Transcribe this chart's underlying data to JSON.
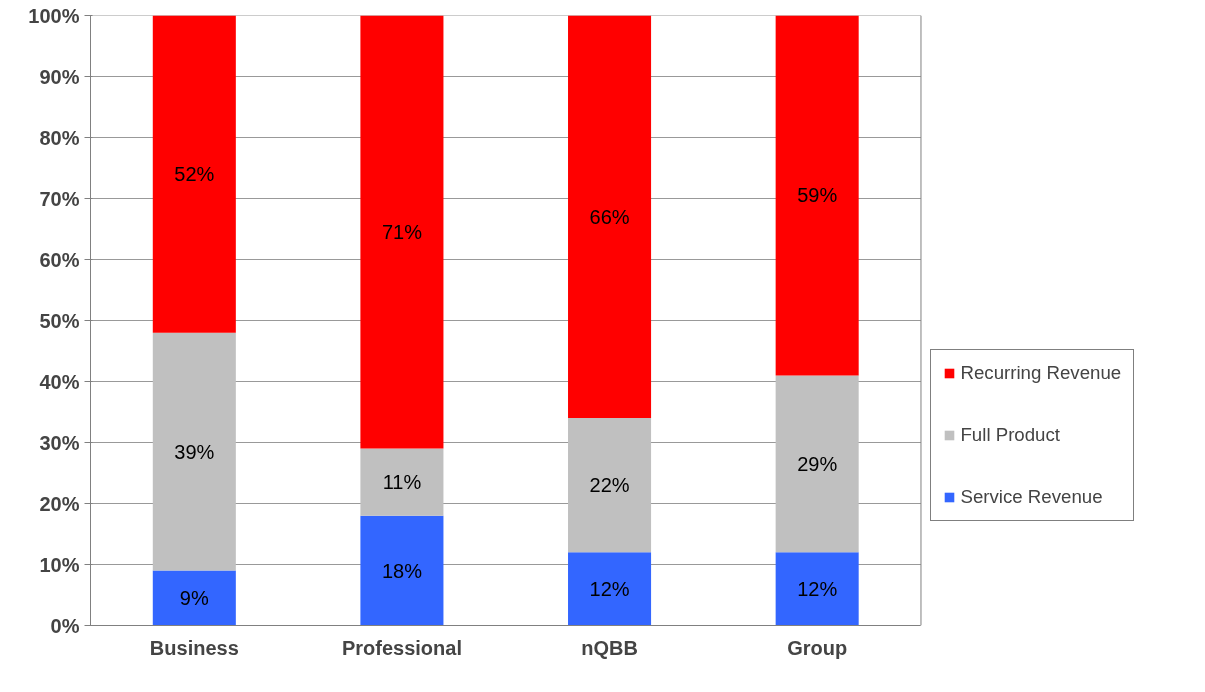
{
  "chart_data": {
    "type": "bar",
    "stacked": true,
    "categories": [
      "Business",
      "Professional",
      "nQBB",
      "Group"
    ],
    "series": [
      {
        "name": "Service Revenue",
        "color": "#3366ff",
        "values": [
          9,
          18,
          12,
          12
        ],
        "value_labels": [
          "9%",
          "18%",
          "12%",
          "12%"
        ]
      },
      {
        "name": "Full Product",
        "color": "#c0c0c0",
        "values": [
          39,
          11,
          22,
          29
        ],
        "value_labels": [
          "39%",
          "11%",
          "22%",
          "29%"
        ]
      },
      {
        "name": "Recurring Revenue",
        "color": "#ff0000",
        "values": [
          52,
          71,
          66,
          59
        ],
        "value_labels": [
          "52%",
          "71%",
          "66%",
          "59%"
        ]
      }
    ],
    "ylim": [
      0,
      100
    ],
    "yticks": [
      {
        "value": 0,
        "label": "0%"
      },
      {
        "value": 10,
        "label": "10%"
      },
      {
        "value": 20,
        "label": "20%"
      },
      {
        "value": 30,
        "label": "30%"
      },
      {
        "value": 40,
        "label": "40%"
      },
      {
        "value": 50,
        "label": "50%"
      },
      {
        "value": 60,
        "label": "60%"
      },
      {
        "value": 70,
        "label": "70%"
      },
      {
        "value": 80,
        "label": "80%"
      },
      {
        "value": 90,
        "label": "90%"
      },
      {
        "value": 100,
        "label": "100%"
      }
    ],
    "grid": "y",
    "legend": "right"
  }
}
